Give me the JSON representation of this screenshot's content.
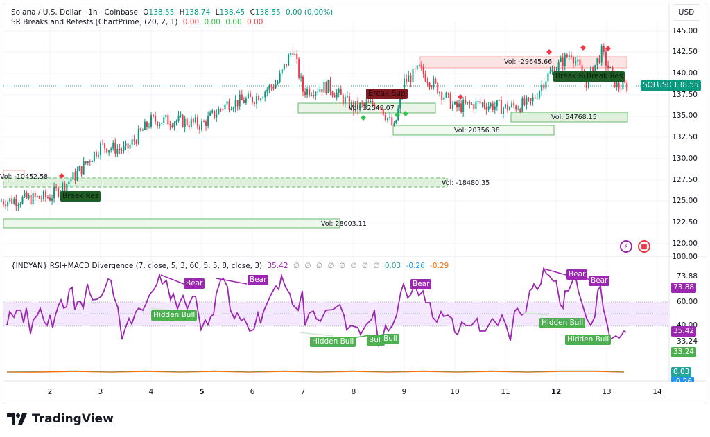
{
  "header": {
    "symbol_title": "Solana / U.S. Dollar · 1h · Coinbase",
    "ohlc": {
      "o_label": "O",
      "o": "138.55",
      "h_label": "H",
      "h": "138.74",
      "l_label": "L",
      "l": "138.45",
      "c_label": "C",
      "c": "138.55",
      "change": "0.00 (0.00%)"
    },
    "indicator1": {
      "name": "SR Breaks and Retests [ChartPrime] (20, 2, 1)",
      "values": [
        "0.00",
        "0.00",
        "0.00",
        "0.00"
      ]
    },
    "indicator2": {
      "name": "{INDYAN} RSI+MACD Divergence (7, close, 5, 3, 60, 5, 5, 8, close, 3)",
      "rsi": "35.42",
      "null_values": [
        "∅",
        "∅",
        "∅",
        "∅",
        "∅",
        "∅",
        "∅",
        "∅"
      ],
      "macd": "0.03",
      "signal": "-0.26",
      "hist": "-0.29"
    }
  },
  "currency_button": "USD",
  "price_axis": {
    "ticks": [
      "145.00",
      "142.50",
      "140.00",
      "137.50",
      "135.00",
      "132.50",
      "130.00",
      "127.50",
      "125.00",
      "122.50",
      "120.00"
    ]
  },
  "price_tag": {
    "symbol": "SOLUSD",
    "price": "138.55"
  },
  "rsi_axis": {
    "ticks": [
      "100.00",
      "60.00",
      "40.00"
    ],
    "tags": {
      "high": "73.88",
      "rsi": "35.42",
      "low": "33.24",
      "macd": "0.03",
      "signal": "-0.26"
    },
    "plain": {
      "high": "73.88",
      "low": "33.24"
    }
  },
  "time_axis": [
    "2",
    "3",
    "4",
    "5",
    "6",
    "7",
    "8",
    "9",
    "10",
    "11",
    "12",
    "13",
    "14"
  ],
  "sr_zones": [
    {
      "label": "Vol: -29645.66",
      "type": "resistance"
    },
    {
      "label": "Vol: 32549.07",
      "type": "support"
    },
    {
      "label": "Vol: 20356.38",
      "type": "support"
    },
    {
      "label": "Vol: 54768.15",
      "type": "support"
    },
    {
      "label": "Vol: -10452.58",
      "type": "resistance"
    },
    {
      "label": "Vol: -18480.35",
      "type": "support"
    },
    {
      "label": "Vol: 28003.11",
      "type": "support"
    }
  ],
  "signals": {
    "break_res": "Break Res",
    "break_sup": "Break Sup",
    "break_res_a": "Break Re",
    "break_res_b": "Break Res"
  },
  "divergence_labels": {
    "bear": "Bear",
    "hidden_bull": "Hidden Bull",
    "bull": "Bull"
  },
  "brand": "TradingView",
  "chart_data": [
    {
      "type": "candlestick",
      "title": "Solana / U.S. Dollar · 1h · Coinbase",
      "ylabel": "USD",
      "ylim": [
        119,
        146
      ],
      "x_ticks": [
        "2",
        "3",
        "4",
        "5",
        "6",
        "7",
        "8",
        "9",
        "10",
        "11",
        "12",
        "13",
        "14"
      ],
      "approx_close_path": [
        {
          "x": "1",
          "y": 125.0
        },
        {
          "x": "2",
          "y": 125.5
        },
        {
          "x": "2.5",
          "y": 128.0
        },
        {
          "x": "3",
          "y": 131.5
        },
        {
          "x": "3.5",
          "y": 131.0
        },
        {
          "x": "4",
          "y": 134.5
        },
        {
          "x": "4.5",
          "y": 134.5
        },
        {
          "x": "5",
          "y": 134.0
        },
        {
          "x": "5.5",
          "y": 136.5
        },
        {
          "x": "6",
          "y": 137.0
        },
        {
          "x": "6.5",
          "y": 139.0
        },
        {
          "x": "6.8",
          "y": 143.0
        },
        {
          "x": "7",
          "y": 138.0
        },
        {
          "x": "7.5",
          "y": 138.5
        },
        {
          "x": "8",
          "y": 136.0
        },
        {
          "x": "8.5",
          "y": 136.5
        },
        {
          "x": "8.8",
          "y": 133.5
        },
        {
          "x": "9",
          "y": 139.0
        },
        {
          "x": "9.3",
          "y": 140.5
        },
        {
          "x": "9.7",
          "y": 138.0
        },
        {
          "x": "10",
          "y": 136.0
        },
        {
          "x": "10.5",
          "y": 136.5
        },
        {
          "x": "11",
          "y": 136.0
        },
        {
          "x": "11.5",
          "y": 136.5
        },
        {
          "x": "11.8",
          "y": 139.5
        },
        {
          "x": "12.3",
          "y": 142.5
        },
        {
          "x": "12.6",
          "y": 139.0
        },
        {
          "x": "12.9",
          "y": 142.5
        },
        {
          "x": "13.2",
          "y": 138.5
        },
        {
          "x": "13.4",
          "y": 138.55
        }
      ],
      "last_price": 138.55,
      "annotations": [
        "Vol: -29645.66",
        "Vol: 32549.07",
        "Vol: 20356.38",
        "Vol: 54768.15",
        "Vol: -10452.58",
        "Vol: -18480.35",
        "Vol: 28003.11",
        "Break Res",
        "Break Sup",
        "Break Re",
        "Break Res"
      ]
    },
    {
      "type": "line",
      "title": "{INDYAN} RSI+MACD Divergence (7, close, 5, 3, 60, 5, 5, 8, close, 3)",
      "ylim": [
        0,
        100
      ],
      "bands": [
        40,
        60
      ],
      "series": [
        {
          "name": "RSI",
          "color": "#9c27b0",
          "last": 35.42
        },
        {
          "name": "MACD",
          "color": "#26a69a",
          "last": 0.03
        },
        {
          "name": "Signal",
          "color": "#ff6d00",
          "last": -0.26
        }
      ],
      "levels": {
        "high": 73.88,
        "low": 33.24
      },
      "annotations": [
        "Bear",
        "Bear",
        "Bear",
        "Bear",
        "Bear",
        "Hidden Bull",
        "Hidden Bull",
        "Bull",
        "Bull",
        "Hidden Bull",
        "Hidden Bull"
      ]
    }
  ]
}
